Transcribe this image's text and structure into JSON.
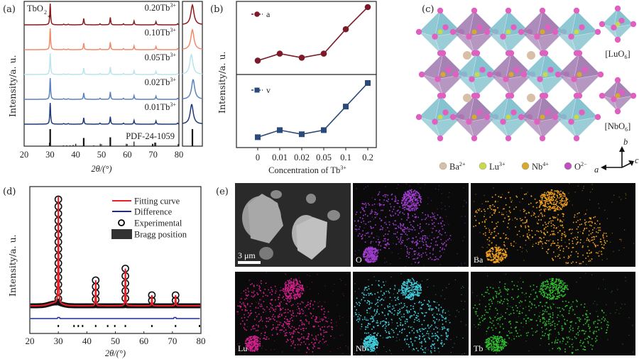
{
  "panel_labels": {
    "a": "(a)",
    "b": "(b)",
    "c": "(c)",
    "d": "(d)",
    "e": "(e)"
  },
  "chart_data": [
    {
      "id": "a",
      "type": "line",
      "title": "",
      "xlabel": "2θ/(°)",
      "ylabel": "Intensity/a. u.",
      "xlim": [
        20,
        80
      ],
      "xticks": [
        "20",
        "30",
        "40",
        "50",
        "60",
        "70",
        "80"
      ],
      "annotation": "TbO2",
      "annotation_marker": "*",
      "series": [
        {
          "name": "0.20Tb3+",
          "label_main": "0.20Tb",
          "label_sup": "3+",
          "color": "#8b1a1a"
        },
        {
          "name": "0.10Tb3+",
          "label_main": "0.10Tb",
          "label_sup": "3+",
          "color": "#f08a6a"
        },
        {
          "name": "0.05Tb3+",
          "label_main": "0.05Tb",
          "label_sup": "3+",
          "color": "#b8e4ec"
        },
        {
          "name": "0.02Tb3+",
          "label_main": "0.02Tb",
          "label_sup": "3+",
          "color": "#5a82c0"
        },
        {
          "name": "0.01Tb3+",
          "label_main": "0.01Tb",
          "label_sup": "3+",
          "color": "#1f3a78"
        }
      ],
      "peaks": [
        {
          "x": 30.1,
          "rel": 1.0
        },
        {
          "x": 35.3,
          "rel": 0.03
        },
        {
          "x": 37.1,
          "rel": 0.03
        },
        {
          "x": 43.1,
          "rel": 0.3
        },
        {
          "x": 49.4,
          "rel": 0.05
        },
        {
          "x": 53.4,
          "rel": 0.35
        },
        {
          "x": 58.5,
          "rel": 0.05
        },
        {
          "x": 62.6,
          "rel": 0.18
        },
        {
          "x": 71.1,
          "rel": 0.15
        },
        {
          "x": 79.5,
          "rel": 0.05
        }
      ],
      "reference": {
        "name": "PDF-24-1059",
        "lines": [
          {
            "x": 29.8,
            "rel": 0.2
          },
          {
            "x": 30.1,
            "rel": 1.0
          },
          {
            "x": 35.2,
            "rel": 0.05
          },
          {
            "x": 36.5,
            "rel": 0.05
          },
          {
            "x": 37.8,
            "rel": 0.05
          },
          {
            "x": 39.0,
            "rel": 0.07
          },
          {
            "x": 40.0,
            "rel": 0.14
          },
          {
            "x": 43.1,
            "rel": 0.48
          },
          {
            "x": 47.0,
            "rel": 0.05
          },
          {
            "x": 49.5,
            "rel": 0.14
          },
          {
            "x": 53.4,
            "rel": 0.52
          },
          {
            "x": 59.6,
            "rel": 0.14
          },
          {
            "x": 62.6,
            "rel": 0.27
          },
          {
            "x": 69.7,
            "rel": 0.14
          },
          {
            "x": 70.6,
            "rel": 0.21
          },
          {
            "x": 71.0,
            "rel": 0.21
          },
          {
            "x": 79.7,
            "rel": 0.12
          }
        ]
      }
    },
    {
      "id": "b",
      "type": "line",
      "xlabel": "Concentration of Tb",
      "xlabel_sup": "3+",
      "ylabel": "Intensity/a. u.",
      "categories": [
        "0",
        "0.01",
        "0.02",
        "0.05",
        "0.1",
        "0.2"
      ],
      "series": [
        {
          "name": "a",
          "marker": "circle",
          "color": "#7a1a2a",
          "values": [
            0.08,
            0.2,
            0.13,
            0.2,
            0.62,
            1.0
          ]
        },
        {
          "name": "v",
          "marker": "square",
          "color": "#2a4a7a",
          "values": [
            0.08,
            0.2,
            0.13,
            0.2,
            0.6,
            1.0
          ]
        }
      ]
    },
    {
      "id": "d",
      "type": "scatter",
      "xlabel": "2θ/(°)",
      "ylabel": "Intensity/a. u.",
      "xlim": [
        20,
        80
      ],
      "xticks": [
        "20",
        "30",
        "40",
        "50",
        "60",
        "70",
        "80"
      ],
      "legend": [
        {
          "label": "Fitting curve",
          "kind": "line",
          "color": "#e8202a"
        },
        {
          "label": "Difference",
          "kind": "line",
          "color": "#1a2a9a"
        },
        {
          "label": "Experimental",
          "kind": "circle",
          "color": "#000000"
        },
        {
          "label": "Bragg position",
          "kind": "box",
          "color": "#333333"
        }
      ],
      "legend_position": "top-right",
      "peaks": [
        {
          "x": 30.0,
          "rel": 1.0
        },
        {
          "x": 43.1,
          "rel": 0.24
        },
        {
          "x": 53.5,
          "rel": 0.35
        },
        {
          "x": 62.8,
          "rel": 0.1
        },
        {
          "x": 71.1,
          "rel": 0.1
        }
      ],
      "bragg_positions": [
        30.0,
        35.5,
        37.0,
        38.5,
        43.1,
        47.3,
        49.8,
        53.5,
        62.8,
        71.1,
        79.5
      ]
    }
  ],
  "structure": {
    "polyhedra_labels": [
      {
        "main": "[LuO",
        "sub": "6",
        "end": "]"
      },
      {
        "main": "[NbO",
        "sub": "6",
        "end": "]"
      }
    ],
    "legend": [
      {
        "ion": "Ba",
        "sup": "2+",
        "color": "#d8c0a8"
      },
      {
        "ion": "Lu",
        "sup": "3+",
        "color": "#c8d850"
      },
      {
        "ion": "Nb",
        "sup": "4+",
        "color": "#d8a830"
      },
      {
        "ion": "O",
        "sup": "2−",
        "color": "#c050c0"
      }
    ],
    "axes": {
      "a": "a",
      "b": "b",
      "c": "c"
    },
    "colors": {
      "lu_octahedron": "#7fbfcc",
      "nb_octahedron": "#a07ab0",
      "oxygen": "#e060c0"
    }
  },
  "eds": {
    "scale_bar": "3 μm",
    "maps": [
      {
        "label": "",
        "color": "#bbbbbb",
        "kind": "sem"
      },
      {
        "label": "O",
        "color": "#a03cd0"
      },
      {
        "label": "Ba",
        "color": "#f0a020"
      },
      {
        "label": "Lu",
        "color": "#d0208a"
      },
      {
        "label": "Nb",
        "color": "#40d0e0"
      },
      {
        "label": "Tb",
        "color": "#30c030"
      }
    ]
  }
}
